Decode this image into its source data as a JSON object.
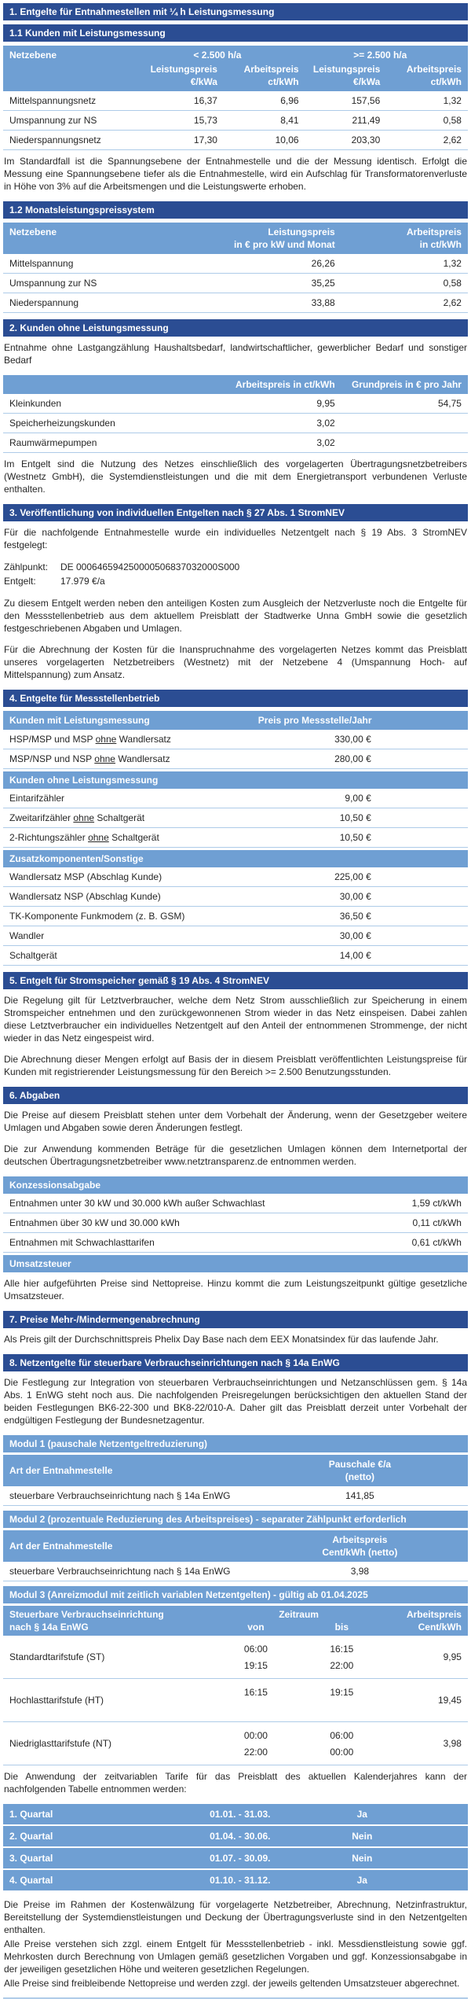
{
  "colors": {
    "section_bar": "#2b4d93",
    "table_header": "#6f9fd3",
    "row_divider": "#aecbe8",
    "page_bg": "#ffffff"
  },
  "s1": "1. Entgelte für Entnahmestellen mit ¼ h Leistungsmessung",
  "s11": "1.1 Kunden mit Leistungsmessung",
  "t11_head": {
    "c1": "Netzebene",
    "g1": "< 2.500 h/a",
    "g2": ">= 2.500 h/a",
    "lp": "Leistungspreis",
    "lpu": "€/kWa",
    "ap": "Arbeitspreis",
    "apu": "ct/kWh"
  },
  "p_standardfall": "Im Standardfall ist die Spannungsebene der Entnahmestelle und die der Messung identisch. Erfolgt die Messung eine Spannungsebene tiefer als die Entnahmestelle, wird ein Aufschlag für Transformatorenverluste in Höhe von 3% auf die Arbeitsmengen und die Leistungswerte erhoben.",
  "s12": "1.2 Monatsleistungspreissystem",
  "t12_head": {
    "c1": "Netzebene",
    "lp1": "Leistungspreis",
    "lp2": "in € pro kW und Monat",
    "ap1": "Arbeitspreis",
    "ap2": "in ct/kWh"
  },
  "s2": "2. Kunden ohne Leistungsmessung",
  "p_s2": "Entnahme ohne Lastgangzählung Haushaltsbedarf, landwirtschaftlicher, gewerblicher Bedarf und sonstiger Bedarf",
  "t2_head": {
    "ap": "Arbeitspreis in ct/kWh",
    "gp": "Grundpreis in € pro Jahr"
  },
  "p_s2b": "Im Entgelt sind die Nutzung des Netzes einschließlich des vorgelagerten Übertragungsnetzbetreibers (Westnetz GmbH), die Systemdienstleistungen und die mit dem Energietransport verbundenen Verluste enthalten.",
  "s3": "3. Veröffentlichung von individuellen Entgelten nach § 27 Abs. 1 StromNEV",
  "p_s3a": "Für die nachfolgende Entnahmestelle wurde ein individuelles Netzentgelt nach § 19 Abs. 3 StromNEV festgelegt:",
  "kv": {
    "zp_label": "Zählpunkt:",
    "zp_value": "DE 000646594250000506837032000S000",
    "e_label": "Entgelt:",
    "e_value": "17.979 €/a"
  },
  "p_s3b": "Zu diesem Entgelt werden neben den anteiligen Kosten zum Ausgleich der Netzverluste noch die Entgelte für den Messstellenbetrieb aus dem aktuellem Preisblatt der Stadtwerke Unna GmbH sowie die gesetzlich festgeschriebenen Abgaben und Umlagen.",
  "p_s3c": "Für die Abrechnung der Kosten für die Inanspruchnahme des vorgelagerten Netzes kommt das Preisblatt unseres vorgelagerten Netzbetreibers (Westnetz) mit der Netzebene 4 (Umspannung Hoch- auf Mittelspannung) zum Ansatz.",
  "s4": "4. Entgelte für Messstellenbetrieb",
  "t4_head": {
    "h1": "Kunden mit Leistungsmessung",
    "h1v": "Preis pro Messstelle/Jahr",
    "h2": "Kunden ohne Leistungsmessung",
    "h3": "Zusatzkomponenten/Sonstige"
  },
  "s5": "5. Entgelt für Stromspeicher gemäß § 19 Abs. 4 StromNEV",
  "p_s5a": "Die Regelung gilt für Letztverbraucher, welche dem Netz Strom ausschließlich zur Speicherung in einem Stromspeicher entnehmen und den zurückgewonnenen Strom wieder in das Netz einspeisen. Dabei zahlen diese Letztverbraucher ein individuelles Netzentgelt auf den Anteil der entnommenen Strommenge, der nicht wieder in das Netz eingespeist wird.",
  "p_s5b": "Die Abrechnung dieser Mengen erfolgt auf Basis der in diesem Preisblatt veröffentlichten Leistungspreise für Kunden mit registrierender Leistungsmessung für den Bereich >= 2.500 Benutzungsstunden.",
  "s6": "6. Abgaben",
  "p_s6a": "Die Preise auf diesem Preisblatt stehen unter dem Vorbehalt der Änderung, wenn der Gesetzgeber weitere Umlagen und Abgaben sowie deren Änderungen festlegt.",
  "p_s6b": "Die zur Anwendung kommenden Beträge für die gesetzlichen Umlagen können dem Internetportal der deutschen Übertragungsnetzbetreiber www.netztransparenz.de entnommen werden.",
  "t6_head": {
    "h1": "Konzessionsabgabe",
    "h2": "Umsatzsteuer"
  },
  "p_s6c": "Alle hier aufgeführten Preise sind Nettopreise. Hinzu kommt die zum Leistungszeitpunkt gültige gesetzliche Umsatzsteuer.",
  "s7": "7. Preise Mehr-/Mindermengenabrechnung",
  "p_s7": "Als Preis gilt der Durchschnittspreis Phelix Day Base nach dem EEX Monatsindex für das laufende Jahr.",
  "s8": "8. Netzentgelte für steuerbare Verbrauchseinrichtungen nach § 14a EnWG",
  "p_s8": "Die Festlegung zur Integration von steuerbaren Verbrauchseinrichtungen und Netzanschlüssen gem. § 14a Abs. 1 EnWG steht noch aus. Die nachfolgenden Preisregelungen berücksichtigen den aktuellen Stand der beiden Festlegungen BK6-22-300 und BK8-22/010-A. Daher gilt das Preisblatt derzeit unter Vorbehalt der endgültigen Festlegung der Bundesnetzagentur.",
  "m1": {
    "bar": "Modul 1 (pauschale Netzentgeltreduzierung)",
    "h1": "Art der Entnahmestelle",
    "h2a": "Pauschale €/a",
    "h2b": "(netto)"
  },
  "m2": {
    "bar": "Modul 2 (prozentuale Reduzierung des Arbeitspreises) - separater Zählpunkt erforderlich",
    "h1": "Art der Entnahmestelle",
    "h2a": "Arbeitspreis",
    "h2b": "Cent/kWh (netto)"
  },
  "m3": {
    "bar": "Modul 3 (Anreizmodul mit zeitlich variablen Netzentgelten) - gültig ab 01.04.2025",
    "h1a": "Steuerbare Verbrauchseinrichtung",
    "h1b": "nach § 14a EnWG",
    "hz": "Zeitraum",
    "hv": "von",
    "hb": "bis",
    "ha": "Arbeitspreis",
    "hau": "Cent/kWh",
    "rows": [
      {
        "label": "Standardtarifstufe (ST)",
        "t1v": "06:00",
        "t1b": "16:15",
        "t2v": "19:15",
        "t2b": "22:00",
        "price": "9,95"
      },
      {
        "label": "Hochlasttarifstufe (HT)",
        "t1v": "16:15",
        "t1b": "19:15",
        "t2v": "",
        "t2b": "",
        "price": "19,45"
      },
      {
        "label": "Niedriglasttarifstufe (NT)",
        "t1v": "00:00",
        "t1b": "06:00",
        "t2v": "22:00",
        "t2b": "00:00",
        "price": "3,98"
      }
    ]
  },
  "p_quart": "Die Anwendung der zeitvariablen Tarife für das Preisblatt des aktuellen Kalenderjahres kann der nachfolgenden Tabelle entnommen werden:",
  "footer": {
    "p1": "Die Preise im Rahmen der Kostenwälzung für vorgelagerte Netzbetreiber, Abrechnung, Netzinfrastruktur, Bereitstellung der Systemdienstleistungen und Deckung der Übertragungsverluste sind in den Netzentgelten enthalten.",
    "p2": "Alle Preise verstehen sich zzgl. einem Entgelt für Messstellenbetrieb - inkl. Messdienstleistung sowie ggf. Mehrkosten durch Berechnung von Umlagen gemäß gesetzlichen Vorgaben und ggf. Konzessionsabgabe in der jeweiligen gesetzlichen Höhe und weiteren gesetzlichen Regelungen.",
    "p3": "Alle Preise sind freibleibende Nettopreise und werden zzgl. der jeweils geltenden Umsatzsteuer abgerechnet."
  },
  "tables": {
    "t11": [
      [
        "Mittelspannungsnetz",
        "16,37",
        "6,96",
        "157,56",
        "1,32"
      ],
      [
        "Umspannung zur NS",
        "15,73",
        "8,41",
        "211,49",
        "0,58"
      ],
      [
        "Niederspannungsnetz",
        "17,30",
        "10,06",
        "203,30",
        "2,62"
      ]
    ],
    "t12": [
      [
        "Mittelspannung",
        "26,26",
        "1,32"
      ],
      [
        "Umspannung zur NS",
        "35,25",
        "0,58"
      ],
      [
        "Niederspannung",
        "33,88",
        "2,62"
      ]
    ],
    "t2": [
      [
        "Kleinkunden",
        "9,95",
        "54,75"
      ],
      [
        "Speicherheizungskunden",
        "3,02",
        ""
      ],
      [
        "Raumwärmepumpen",
        "3,02",
        ""
      ]
    ],
    "t4a": [
      [
        {
          "p": "HSP/MSP und MSP ",
          "u": "ohne",
          "s": " Wandlersatz"
        },
        "330,00 €"
      ],
      [
        {
          "p": "MSP/NSP und NSP ",
          "u": "ohne",
          "s": " Wandlersatz"
        },
        "280,00 €"
      ]
    ],
    "t4b": [
      [
        "Eintarifzähler",
        "9,00 €"
      ],
      [
        {
          "p": "Zweitarifzähler ",
          "u": "ohne",
          "s": " Schaltgerät"
        },
        "10,50 €"
      ],
      [
        {
          "p": "2-Richtungszähler ",
          "u": "ohne",
          "s": " Schaltgerät"
        },
        "10,50 €"
      ]
    ],
    "t4c": [
      [
        "Wandlersatz MSP (Abschlag Kunde)",
        "225,00 €"
      ],
      [
        "Wandlersatz NSP (Abschlag Kunde)",
        "30,00 €"
      ],
      [
        "TK-Komponente Funkmodem (z. B. GSM)",
        "36,50 €"
      ],
      [
        "Wandler",
        "30,00 €"
      ],
      [
        "Schaltgerät",
        "14,00 €"
      ]
    ],
    "t6": [
      [
        "Entnahmen unter 30 kW und 30.000 kWh außer Schwachlast",
        "1,59 ct/kWh"
      ],
      [
        "Entnahmen über 30 kW und 30.000 kWh",
        "0,11 ct/kWh"
      ],
      [
        "Entnahmen mit Schwachlasttarifen",
        "0,61 ct/kWh"
      ]
    ],
    "m1rows": [
      [
        "steuerbare Verbrauchseinrichtung nach § 14a EnWG",
        "141,85"
      ]
    ],
    "m2rows": [
      [
        "steuerbare Verbrauchseinrichtung nach § 14a EnWG",
        "3,98"
      ]
    ],
    "quart": [
      [
        "1. Quartal",
        "01.01. - 31.03.",
        "Ja"
      ],
      [
        "2. Quartal",
        "01.04. - 30.06.",
        "Nein"
      ],
      [
        "3. Quartal",
        "01.07. - 30.09.",
        "Nein"
      ],
      [
        "4. Quartal",
        "01.10. - 31.12.",
        "Ja"
      ]
    ]
  }
}
